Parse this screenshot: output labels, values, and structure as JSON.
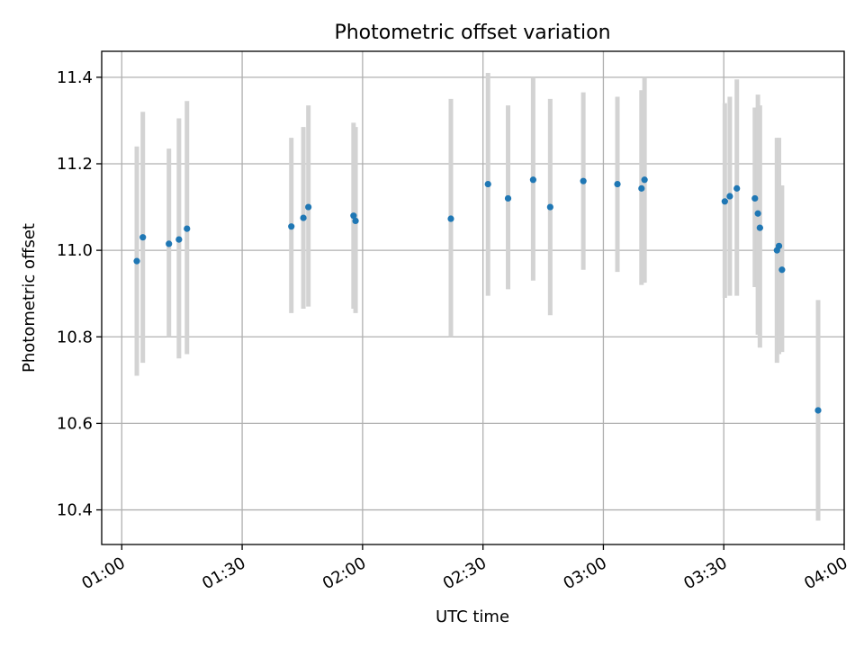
{
  "chart_data": {
    "type": "scatter",
    "title": "Photometric offset variation",
    "xlabel": "UTC time",
    "ylabel": "Photometric offset",
    "x_ticks": [
      "01:00",
      "01:30",
      "02:00",
      "02:30",
      "03:00",
      "03:30",
      "04:00"
    ],
    "y_ticks": [
      "10.4",
      "10.6",
      "10.8",
      "11.0",
      "11.2",
      "11.4"
    ],
    "xlim": [
      "00:55",
      "04:00"
    ],
    "ylim": [
      10.32,
      11.46
    ],
    "grid": true,
    "colors": {
      "point": "#1f77b4",
      "errorbar": "#d3d3d3",
      "grid": "#b0b0b0"
    },
    "points": [
      {
        "t": "01:03:45",
        "y": 10.975,
        "lo": 10.71,
        "hi": 11.24
      },
      {
        "t": "01:05:15",
        "y": 11.03,
        "lo": 10.74,
        "hi": 11.32
      },
      {
        "t": "01:11:45",
        "y": 11.015,
        "lo": 10.8,
        "hi": 11.235
      },
      {
        "t": "01:14:15",
        "y": 11.025,
        "lo": 10.75,
        "hi": 11.305
      },
      {
        "t": "01:16:15",
        "y": 11.05,
        "lo": 10.76,
        "hi": 11.345
      },
      {
        "t": "01:42:15",
        "y": 11.055,
        "lo": 10.855,
        "hi": 11.26
      },
      {
        "t": "01:45:15",
        "y": 11.075,
        "lo": 10.865,
        "hi": 11.285
      },
      {
        "t": "01:46:30",
        "y": 11.1,
        "lo": 10.87,
        "hi": 11.335
      },
      {
        "t": "01:57:45",
        "y": 11.08,
        "lo": 10.865,
        "hi": 11.295
      },
      {
        "t": "01:58:15",
        "y": 11.068,
        "lo": 10.855,
        "hi": 11.285
      },
      {
        "t": "02:22:00",
        "y": 11.073,
        "lo": 10.8,
        "hi": 11.35
      },
      {
        "t": "02:31:15",
        "y": 11.153,
        "lo": 10.895,
        "hi": 11.41
      },
      {
        "t": "02:36:15",
        "y": 11.12,
        "lo": 10.91,
        "hi": 11.335
      },
      {
        "t": "02:42:30",
        "y": 11.163,
        "lo": 10.93,
        "hi": 11.4
      },
      {
        "t": "02:46:45",
        "y": 11.1,
        "lo": 10.85,
        "hi": 11.35
      },
      {
        "t": "02:55:00",
        "y": 11.16,
        "lo": 10.955,
        "hi": 11.365
      },
      {
        "t": "03:03:30",
        "y": 11.153,
        "lo": 10.95,
        "hi": 11.355
      },
      {
        "t": "03:09:30",
        "y": 11.143,
        "lo": 10.92,
        "hi": 11.37
      },
      {
        "t": "03:10:15",
        "y": 11.163,
        "lo": 10.925,
        "hi": 11.4
      },
      {
        "t": "03:30:15",
        "y": 11.113,
        "lo": 10.89,
        "hi": 11.34
      },
      {
        "t": "03:31:30",
        "y": 11.125,
        "lo": 10.895,
        "hi": 11.355
      },
      {
        "t": "03:33:15",
        "y": 11.143,
        "lo": 10.895,
        "hi": 11.395
      },
      {
        "t": "03:37:45",
        "y": 11.12,
        "lo": 10.915,
        "hi": 11.33
      },
      {
        "t": "03:38:30",
        "y": 11.085,
        "lo": 10.805,
        "hi": 11.36
      },
      {
        "t": "03:39:00",
        "y": 11.052,
        "lo": 10.775,
        "hi": 11.335
      },
      {
        "t": "03:43:15",
        "y": 11.0,
        "lo": 10.74,
        "hi": 11.26
      },
      {
        "t": "03:43:45",
        "y": 11.01,
        "lo": 10.76,
        "hi": 11.26
      },
      {
        "t": "03:44:30",
        "y": 10.955,
        "lo": 10.765,
        "hi": 11.15
      },
      {
        "t": "03:53:30",
        "y": 10.63,
        "lo": 10.375,
        "hi": 10.885
      }
    ]
  }
}
